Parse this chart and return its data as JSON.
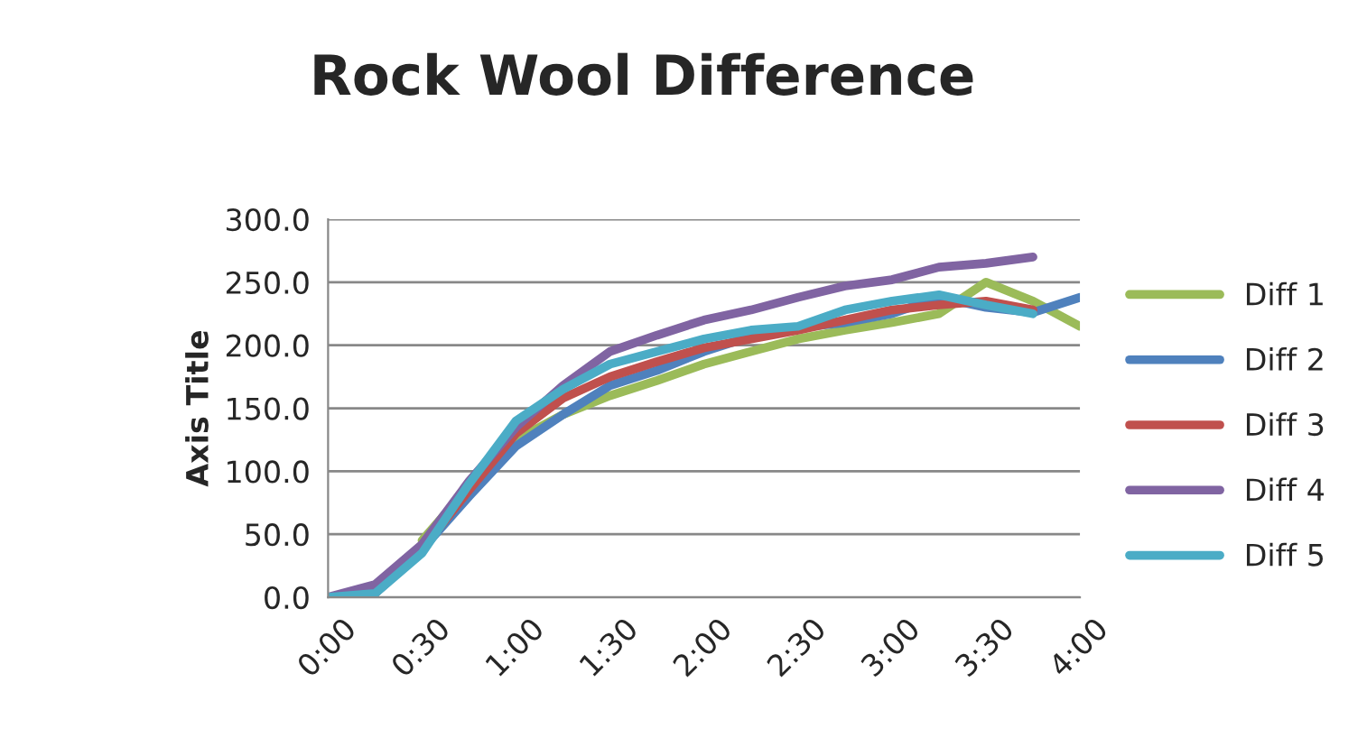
{
  "chart_data": {
    "type": "line",
    "title": "Rock Wool Difference",
    "ylabel": "Axis Title",
    "x": [
      0,
      0.25,
      0.5,
      0.75,
      1,
      1.25,
      1.5,
      1.75,
      2,
      2.25,
      2.5,
      2.75,
      3,
      3.25,
      3.5,
      3.75,
      4
    ],
    "xlim": [
      0,
      4
    ],
    "xticks": [
      {
        "value": 0,
        "label": "0:00"
      },
      {
        "value": 0.5,
        "label": "0:30"
      },
      {
        "value": 1,
        "label": "1:00"
      },
      {
        "value": 1.5,
        "label": "1:30"
      },
      {
        "value": 2,
        "label": "2:00"
      },
      {
        "value": 2.5,
        "label": "2:30"
      },
      {
        "value": 3,
        "label": "3:00"
      },
      {
        "value": 3.5,
        "label": "3:30"
      },
      {
        "value": 4,
        "label": "4:00"
      }
    ],
    "ylim": [
      0,
      300
    ],
    "yticks": [
      {
        "value": 0,
        "label": "0.0"
      },
      {
        "value": 50,
        "label": "50.0"
      },
      {
        "value": 100,
        "label": "100.0"
      },
      {
        "value": 150,
        "label": "150.0"
      },
      {
        "value": 200,
        "label": "200.0"
      },
      {
        "value": 250,
        "label": "250.0"
      },
      {
        "value": 300,
        "label": "300.0"
      }
    ],
    "grid": "y",
    "legend": "right",
    "marker": "none",
    "line_style": "solid",
    "series": [
      {
        "name": "Diff 1",
        "color": "#9bbb59",
        "values": [
          null,
          null,
          45,
          88,
          125,
          145,
          160,
          172,
          185,
          195,
          205,
          212,
          218,
          225,
          250,
          235,
          215
        ]
      },
      {
        "name": "Diff 2",
        "color": "#4f81bd",
        "values": [
          0,
          3,
          38,
          80,
          120,
          145,
          168,
          180,
          195,
          207,
          214,
          218,
          225,
          238,
          230,
          226,
          238
        ]
      },
      {
        "name": "Diff 3",
        "color": "#c0504d",
        "values": [
          0,
          3,
          38,
          85,
          130,
          158,
          175,
          187,
          198,
          205,
          212,
          220,
          228,
          232,
          235,
          228,
          null
        ]
      },
      {
        "name": "Diff 4",
        "color": "#8064a2",
        "values": [
          0,
          10,
          42,
          92,
          135,
          168,
          195,
          208,
          220,
          228,
          238,
          247,
          252,
          262,
          265,
          270,
          null
        ]
      },
      {
        "name": "Diff 5",
        "color": "#4bacc6",
        "values": [
          0,
          3,
          35,
          90,
          140,
          165,
          185,
          195,
          205,
          212,
          215,
          228,
          235,
          240,
          232,
          225,
          null
        ]
      }
    ]
  }
}
